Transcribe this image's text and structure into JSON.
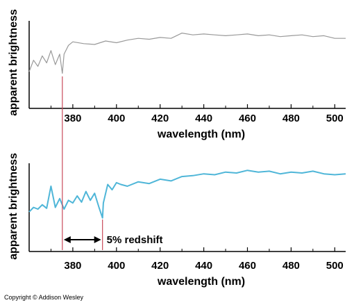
{
  "chart_data": [
    {
      "type": "line",
      "ylabel": "apparent brightness",
      "xlabel": "wavelength (nm)",
      "xlim": [
        360,
        505
      ],
      "ylim": [
        0,
        1
      ],
      "x_ticks": [
        "380",
        "400",
        "420",
        "440",
        "460",
        "480",
        "500"
      ],
      "color": "#999999",
      "line_x": [
        375.2
      ],
      "series": [
        {
          "x": [
            360,
            362,
            364,
            366,
            368,
            370,
            372,
            374,
            375.2,
            376,
            378,
            380,
            385,
            390,
            395,
            400,
            405,
            410,
            415,
            420,
            425,
            430,
            435,
            440,
            445,
            450,
            455,
            460,
            465,
            470,
            475,
            480,
            485,
            490,
            495,
            500,
            505
          ],
          "y": [
            0.42,
            0.55,
            0.48,
            0.6,
            0.52,
            0.66,
            0.5,
            0.62,
            0.4,
            0.62,
            0.72,
            0.76,
            0.74,
            0.73,
            0.77,
            0.75,
            0.78,
            0.8,
            0.79,
            0.81,
            0.8,
            0.86,
            0.84,
            0.85,
            0.84,
            0.83,
            0.84,
            0.85,
            0.83,
            0.84,
            0.82,
            0.83,
            0.84,
            0.82,
            0.83,
            0.8,
            0.8
          ]
        }
      ]
    },
    {
      "type": "line",
      "ylabel": "apparent brightness",
      "xlabel": "wavelength (nm)",
      "xlim": [
        360,
        505
      ],
      "ylim": [
        0,
        1
      ],
      "x_ticks": [
        "380",
        "400",
        "420",
        "440",
        "460",
        "480",
        "500"
      ],
      "color": "#4fb6d8",
      "line_x": [
        375.2,
        393.6
      ],
      "annotation": "5% redshift",
      "series": [
        {
          "x": [
            360,
            362,
            364,
            366,
            368,
            370,
            372,
            374,
            376,
            378,
            380,
            382,
            384,
            386,
            388,
            390,
            392,
            393.6,
            394,
            396,
            398,
            400,
            402,
            405,
            410,
            415,
            420,
            425,
            430,
            435,
            440,
            445,
            450,
            455,
            460,
            465,
            470,
            475,
            480,
            485,
            490,
            495,
            500,
            505
          ],
          "y": [
            0.45,
            0.5,
            0.48,
            0.53,
            0.49,
            0.74,
            0.5,
            0.6,
            0.48,
            0.58,
            0.55,
            0.63,
            0.56,
            0.68,
            0.58,
            0.66,
            0.5,
            0.38,
            0.55,
            0.76,
            0.7,
            0.78,
            0.76,
            0.74,
            0.79,
            0.77,
            0.82,
            0.8,
            0.85,
            0.86,
            0.88,
            0.87,
            0.9,
            0.89,
            0.92,
            0.9,
            0.91,
            0.88,
            0.9,
            0.89,
            0.91,
            0.88,
            0.87,
            0.88
          ]
        }
      ]
    }
  ],
  "copyright": "Copyright © Addison Wesley"
}
